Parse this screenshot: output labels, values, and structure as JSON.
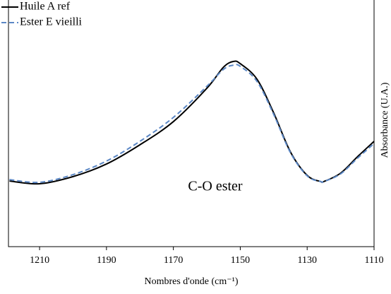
{
  "chart_data": {
    "type": "line",
    "x": [
      1219,
      1210,
      1200,
      1190,
      1180,
      1170,
      1160,
      1155,
      1152,
      1150,
      1145,
      1140,
      1135,
      1130,
      1126,
      1125,
      1120,
      1115,
      1110
    ],
    "series": [
      {
        "name": "Huile A ref",
        "color": "#000000",
        "dash": false,
        "values": [
          26.6,
          25.5,
          28.4,
          33.5,
          41.3,
          50.7,
          64.2,
          72.8,
          75.1,
          74.2,
          67.9,
          54.2,
          38.4,
          28.9,
          26.4,
          26.4,
          29.8,
          36.4,
          42.7
        ]
      },
      {
        "name": "Ester E vieilli",
        "color": "#5b87c5",
        "dash": true,
        "values": [
          27.2,
          26.1,
          29.2,
          34.7,
          42.7,
          52.4,
          65.0,
          71.9,
          73.6,
          73.1,
          67.0,
          53.6,
          38.1,
          28.7,
          26.4,
          26.4,
          29.5,
          35.8,
          41.8
        ]
      }
    ],
    "xlim": [
      1219.3,
      1110
    ],
    "xticks": [
      1210,
      1190,
      1170,
      1150,
      1130,
      1110
    ],
    "ylim": [
      0,
      100
    ],
    "xlabel": "Nombres d'onde (cm⁻¹)",
    "ylabel": "Absorbance (U.A.)",
    "annotation": "C-O ester",
    "legend": "upper left"
  }
}
